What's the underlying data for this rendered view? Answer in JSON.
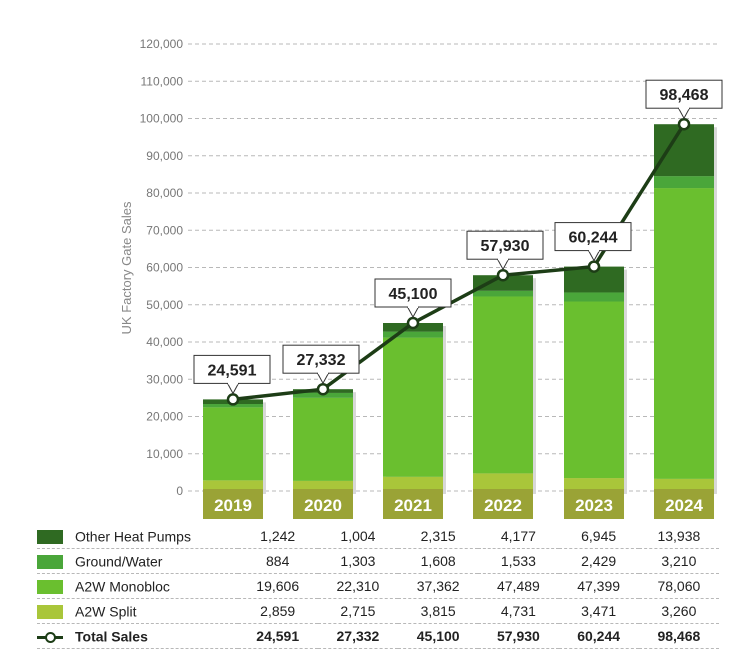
{
  "chart_data": {
    "type": "bar",
    "stacked": true,
    "ylabel": "UK Factory Gate Sales",
    "ylim": [
      0,
      120000
    ],
    "y_ticks": [
      "0",
      "10,000",
      "20,000",
      "30,000",
      "40,000",
      "50,000",
      "60,000",
      "70,000",
      "80,000",
      "90,000",
      "100,000",
      "110,000",
      "120,000"
    ],
    "grid": true,
    "categories": [
      "2019",
      "2020",
      "2021",
      "2022",
      "2023",
      "2024"
    ],
    "series": [
      {
        "name": "A2W Split",
        "color": "#a9c63a",
        "values": [
          2859,
          2715,
          3815,
          4731,
          3471,
          3260
        ],
        "labels": [
          "2,859",
          "2,715",
          "3,815",
          "4,731",
          "3,471",
          "3,260"
        ]
      },
      {
        "name": "A2W Monobloc",
        "color": "#6abf2f",
        "values": [
          19606,
          22310,
          37362,
          47489,
          47399,
          78060
        ],
        "labels": [
          "19,606",
          "22,310",
          "37,362",
          "47,489",
          "47,399",
          "78,060"
        ]
      },
      {
        "name": "Ground/Water",
        "color": "#4aa63a",
        "values": [
          884,
          1303,
          1608,
          1533,
          2429,
          3210
        ],
        "labels": [
          "884",
          "1,303",
          "1,608",
          "1,533",
          "2,429",
          "3,210"
        ]
      },
      {
        "name": "Other Heat Pumps",
        "color": "#2f6a22",
        "values": [
          1242,
          1004,
          2315,
          4177,
          6945,
          13938
        ],
        "labels": [
          "1,242",
          "1,004",
          "2,315",
          "4,177",
          "6,945",
          "13,938"
        ]
      }
    ],
    "total": {
      "name": "Total Sales",
      "type": "line",
      "color": "#1d3d16",
      "values": [
        24591,
        27332,
        45100,
        57930,
        60244,
        98468
      ],
      "labels": [
        "24,591",
        "27,332",
        "45,100",
        "57,930",
        "60,244",
        "98,468"
      ]
    },
    "year_label_color": "#9aa336"
  }
}
